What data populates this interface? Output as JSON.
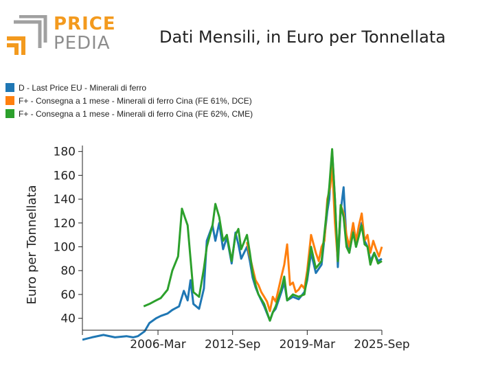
{
  "header": {
    "logo": {
      "word1": "PRICE",
      "word2": "PEDIA",
      "accent_color": "#F39A1E",
      "gray_color": "#A0A0A0"
    },
    "title": "Dati Mensili, in Euro per Tonnellata"
  },
  "legend": [
    {
      "label": "D - Last Price EU - Minerali di ferro",
      "color": "#1F77B4"
    },
    {
      "label": "F+ - Consegna a 1 mese - Minerali di ferro Cina (FE 61%, DCE)",
      "color": "#FF7F0E"
    },
    {
      "label": "F+ - Consegna a 1 mese - Minerali di ferro Cina (FE 62%, CME)",
      "color": "#2CA02C"
    }
  ],
  "chart_data": {
    "type": "line",
    "ylabel": "Euro per Tonnellata",
    "xlabel": "",
    "xlim": [
      "1999-08",
      "2025-09"
    ],
    "ylim": [
      30,
      185
    ],
    "x_tick_labels": [
      "2006-Mar",
      "2012-Sep",
      "2019-Mar",
      "2025-Sep"
    ],
    "x_tick_dates": [
      "2006-03",
      "2012-09",
      "2019-03",
      "2025-09"
    ],
    "y_ticks": [
      40,
      60,
      80,
      100,
      120,
      140,
      160,
      180
    ],
    "series": [
      {
        "name": "D - Last Price EU - Minerali di ferro",
        "color": "#1F77B4",
        "points": [
          [
            "1999-08",
            22
          ],
          [
            "2000-06",
            24
          ],
          [
            "2001-06",
            26
          ],
          [
            "2002-06",
            24
          ],
          [
            "2003-06",
            25
          ],
          [
            "2004-01",
            24
          ],
          [
            "2004-06",
            25
          ],
          [
            "2005-01",
            29
          ],
          [
            "2005-06",
            36
          ],
          [
            "2006-01",
            40
          ],
          [
            "2006-06",
            42
          ],
          [
            "2007-01",
            44
          ],
          [
            "2007-06",
            47
          ],
          [
            "2008-01",
            50
          ],
          [
            "2008-06",
            63
          ],
          [
            "2008-10",
            55
          ],
          [
            "2009-01",
            72
          ],
          [
            "2009-04",
            52
          ],
          [
            "2009-10",
            48
          ],
          [
            "2010-03",
            65
          ],
          [
            "2010-06",
            105
          ],
          [
            "2010-12",
            118
          ],
          [
            "2011-03",
            105
          ],
          [
            "2011-07",
            120
          ],
          [
            "2011-11",
            98
          ],
          [
            "2012-03",
            108
          ],
          [
            "2012-08",
            86
          ],
          [
            "2012-12",
            112
          ],
          [
            "2013-03",
            102
          ],
          [
            "2013-06",
            90
          ],
          [
            "2013-12",
            100
          ],
          [
            "2014-03",
            88
          ],
          [
            "2014-06",
            74
          ],
          [
            "2014-09",
            66
          ],
          [
            "2014-12",
            60
          ],
          [
            "2015-06",
            50
          ],
          [
            "2015-12",
            38
          ],
          [
            "2016-03",
            45
          ],
          [
            "2016-06",
            48
          ],
          [
            "2016-12",
            62
          ],
          [
            "2017-03",
            70
          ],
          [
            "2017-06",
            55
          ],
          [
            "2017-12",
            58
          ],
          [
            "2018-06",
            56
          ],
          [
            "2018-12",
            62
          ],
          [
            "2019-03",
            72
          ],
          [
            "2019-07",
            95
          ],
          [
            "2019-12",
            78
          ],
          [
            "2020-06",
            85
          ],
          [
            "2020-12",
            130
          ],
          [
            "2021-02",
            140
          ],
          [
            "2021-05",
            180
          ],
          [
            "2021-08",
            140
          ],
          [
            "2021-11",
            83
          ],
          [
            "2022-02",
            130
          ],
          [
            "2022-05",
            150
          ],
          [
            "2022-08",
            105
          ],
          [
            "2022-11",
            95
          ],
          [
            "2023-03",
            115
          ],
          [
            "2023-06",
            100
          ],
          [
            "2023-12",
            120
          ],
          [
            "2024-03",
            105
          ],
          [
            "2024-06",
            100
          ],
          [
            "2024-09",
            88
          ],
          [
            "2025-01",
            95
          ],
          [
            "2025-05",
            88
          ],
          [
            "2025-09",
            90
          ]
        ]
      },
      {
        "name": "F+ - Consegna a 1 mese - Minerali di ferro Cina (FE 61%, DCE)",
        "color": "#FF7F0E",
        "points": [
          [
            "2013-12",
            104
          ],
          [
            "2014-03",
            92
          ],
          [
            "2014-06",
            82
          ],
          [
            "2014-09",
            72
          ],
          [
            "2014-12",
            68
          ],
          [
            "2015-03",
            62
          ],
          [
            "2015-06",
            58
          ],
          [
            "2015-09",
            54
          ],
          [
            "2015-12",
            46
          ],
          [
            "2016-03",
            58
          ],
          [
            "2016-06",
            54
          ],
          [
            "2016-12",
            75
          ],
          [
            "2017-03",
            85
          ],
          [
            "2017-06",
            102
          ],
          [
            "2017-09",
            68
          ],
          [
            "2017-12",
            70
          ],
          [
            "2018-03",
            62
          ],
          [
            "2018-06",
            64
          ],
          [
            "2018-09",
            68
          ],
          [
            "2018-12",
            65
          ],
          [
            "2019-03",
            80
          ],
          [
            "2019-07",
            110
          ],
          [
            "2019-12",
            95
          ],
          [
            "2020-03",
            88
          ],
          [
            "2020-06",
            100
          ],
          [
            "2020-09",
            105
          ],
          [
            "2020-12",
            140
          ],
          [
            "2021-03",
            150
          ],
          [
            "2021-05",
            168
          ],
          [
            "2021-08",
            120
          ],
          [
            "2021-11",
            88
          ],
          [
            "2022-02",
            135
          ],
          [
            "2022-05",
            128
          ],
          [
            "2022-08",
            110
          ],
          [
            "2022-11",
            100
          ],
          [
            "2023-03",
            120
          ],
          [
            "2023-06",
            105
          ],
          [
            "2023-09",
            118
          ],
          [
            "2023-12",
            128
          ],
          [
            "2024-03",
            105
          ],
          [
            "2024-06",
            110
          ],
          [
            "2024-09",
            95
          ],
          [
            "2024-12",
            105
          ],
          [
            "2025-03",
            98
          ],
          [
            "2025-06",
            92
          ],
          [
            "2025-09",
            100
          ]
        ]
      },
      {
        "name": "F+ - Consegna a 1 mese - Minerali di ferro Cina (FE 62%, CME)",
        "color": "#2CA02C",
        "points": [
          [
            "2004-12",
            50
          ],
          [
            "2005-06",
            52
          ],
          [
            "2006-01",
            55
          ],
          [
            "2006-06",
            57
          ],
          [
            "2007-01",
            64
          ],
          [
            "2007-06",
            80
          ],
          [
            "2007-12",
            92
          ],
          [
            "2008-04",
            132
          ],
          [
            "2008-07",
            125
          ],
          [
            "2008-10",
            118
          ],
          [
            "2009-01",
            90
          ],
          [
            "2009-04",
            62
          ],
          [
            "2009-10",
            58
          ],
          [
            "2010-03",
            82
          ],
          [
            "2010-06",
            100
          ],
          [
            "2010-12",
            118
          ],
          [
            "2011-03",
            136
          ],
          [
            "2011-07",
            125
          ],
          [
            "2011-11",
            105
          ],
          [
            "2012-03",
            110
          ],
          [
            "2012-08",
            88
          ],
          [
            "2012-12",
            110
          ],
          [
            "2013-03",
            115
          ],
          [
            "2013-06",
            98
          ],
          [
            "2013-12",
            110
          ],
          [
            "2014-03",
            95
          ],
          [
            "2014-06",
            78
          ],
          [
            "2014-09",
            68
          ],
          [
            "2014-12",
            60
          ],
          [
            "2015-06",
            52
          ],
          [
            "2015-12",
            38
          ],
          [
            "2016-03",
            45
          ],
          [
            "2016-06",
            50
          ],
          [
            "2016-12",
            65
          ],
          [
            "2017-03",
            75
          ],
          [
            "2017-06",
            55
          ],
          [
            "2017-12",
            60
          ],
          [
            "2018-06",
            58
          ],
          [
            "2018-12",
            60
          ],
          [
            "2019-03",
            75
          ],
          [
            "2019-07",
            100
          ],
          [
            "2019-12",
            82
          ],
          [
            "2020-06",
            88
          ],
          [
            "2020-12",
            135
          ],
          [
            "2021-02",
            150
          ],
          [
            "2021-05",
            182
          ],
          [
            "2021-08",
            140
          ],
          [
            "2021-11",
            88
          ],
          [
            "2022-02",
            135
          ],
          [
            "2022-05",
            125
          ],
          [
            "2022-08",
            100
          ],
          [
            "2022-11",
            95
          ],
          [
            "2023-03",
            112
          ],
          [
            "2023-06",
            100
          ],
          [
            "2023-12",
            118
          ],
          [
            "2024-03",
            102
          ],
          [
            "2024-06",
            100
          ],
          [
            "2024-09",
            85
          ],
          [
            "2025-01",
            95
          ],
          [
            "2025-05",
            86
          ],
          [
            "2025-09",
            88
          ]
        ]
      }
    ]
  }
}
